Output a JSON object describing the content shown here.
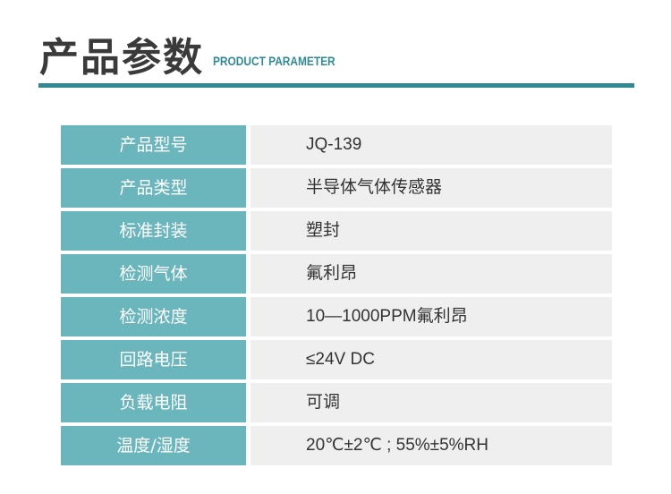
{
  "header": {
    "title": "产品参数",
    "subtitle": "PRODUCT PARAMETER"
  },
  "colors": {
    "accent": "#318a91",
    "label_bg": "#6bb5bd",
    "value_bg": "#efefef"
  },
  "params": [
    {
      "label": "产品型号",
      "value": "JQ-139"
    },
    {
      "label": "产品类型",
      "value": "半导体气体传感器"
    },
    {
      "label": "标准封装",
      "value": "塑封"
    },
    {
      "label": "检测气体",
      "value": "氟利昂"
    },
    {
      "label": "检测浓度",
      "value": "10—1000PPM氟利昂"
    },
    {
      "label": "回路电压",
      "value": "≤24V DC"
    },
    {
      "label": "负载电阻",
      "value": "可调"
    },
    {
      "label": "温度/湿度",
      "value": "20℃±2℃ ; 55%±5%RH"
    }
  ]
}
